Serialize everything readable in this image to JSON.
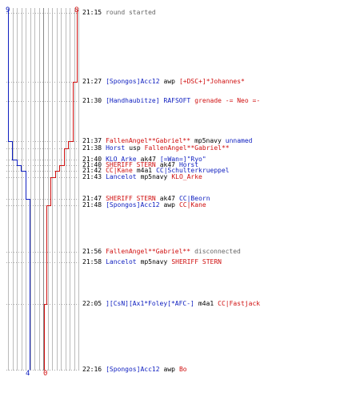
{
  "colors": {
    "team_blue": "#1020c0",
    "team_red": "#d01010",
    "timeline_grid": "#bbbbbb",
    "dash": "#aaaaaa",
    "weapon_text": "#000000",
    "status_text": "#666666"
  },
  "counters": {
    "top_blue": "9",
    "top_red": "8",
    "bottom_blue": "4",
    "bottom_red": "0"
  },
  "events": [
    {
      "time": "21:15",
      "killer": "",
      "killer_team": "",
      "weapon": "",
      "victim": "",
      "victim_team": "",
      "text": "round started"
    },
    {
      "time": "21:27",
      "killer": "[Spongos]Acc12",
      "killer_team": "t",
      "weapon": "awp",
      "victim": "[+DSC+]*Johannes*",
      "victim_team": "r",
      "text": ""
    },
    {
      "time": "21:30",
      "killer": "[Handhaubitze]",
      "killer_team": "t",
      "weapon": "",
      "victim": "RAFSOFT",
      "victim_team": "t",
      "text": "grenade -= Neo =-"
    },
    {
      "time": "21:37",
      "killer": "FallenAngel**Gabriel**",
      "killer_team": "r",
      "weapon": "mp5navy",
      "victim": "unnamed",
      "victim_team": "t",
      "text": ""
    },
    {
      "time": "21:38",
      "killer": "Horst",
      "killer_team": "t",
      "weapon": "usp",
      "victim": "FallenAngel**Gabriel**",
      "victim_team": "r",
      "text": ""
    },
    {
      "time": "21:40",
      "killer": "KLO_Arke",
      "killer_team": "t",
      "weapon": "ak47",
      "victim": "[=Wan=]\"Ryo\"",
      "victim_team": "t",
      "text": ""
    },
    {
      "time": "21:40",
      "killer": "SHERIFF STERN",
      "killer_team": "r",
      "weapon": "ak47",
      "victim": "Horst",
      "victim_team": "t",
      "text": ""
    },
    {
      "time": "21:42",
      "killer": "CC|Kane",
      "killer_team": "r",
      "weapon": "m4a1",
      "victim": "CC|Schulterkrueppel",
      "victim_team": "t",
      "text": ""
    },
    {
      "time": "21:43",
      "killer": "Lancelot",
      "killer_team": "t",
      "weapon": "mp5navy",
      "victim": "KLO_Arke",
      "victim_team": "r",
      "text": ""
    },
    {
      "time": "21:47",
      "killer": "SHERIFF STERN",
      "killer_team": "r",
      "weapon": "ak47",
      "victim": "CC|Beorn",
      "victim_team": "t",
      "text": ""
    },
    {
      "time": "21:48",
      "killer": "[Spongos]Acc12",
      "killer_team": "t",
      "weapon": "awp",
      "victim": "CC|Kane",
      "victim_team": "r",
      "text": ""
    },
    {
      "time": "21:56",
      "killer": "FallenAngel**Gabriel**",
      "killer_team": "r",
      "weapon": "",
      "victim": "",
      "victim_team": "",
      "text": "disconnected"
    },
    {
      "time": "21:58",
      "killer": "Lancelot",
      "killer_team": "t",
      "weapon": "mp5navy",
      "victim": "SHERIFF STERN",
      "victim_team": "r",
      "text": ""
    },
    {
      "time": "22:05",
      "killer": "][CsN][Ax1*Foley[*AFC-]",
      "killer_team": "t",
      "weapon": "m4a1",
      "victim": "CC|Fastjack",
      "victim_team": "r",
      "text": ""
    },
    {
      "time": "22:16",
      "killer": "[Spongos]Acc12",
      "killer_team": "t",
      "weapon": "awp",
      "victim": "Bo",
      "victim_team": "r",
      "text": ""
    }
  ]
}
